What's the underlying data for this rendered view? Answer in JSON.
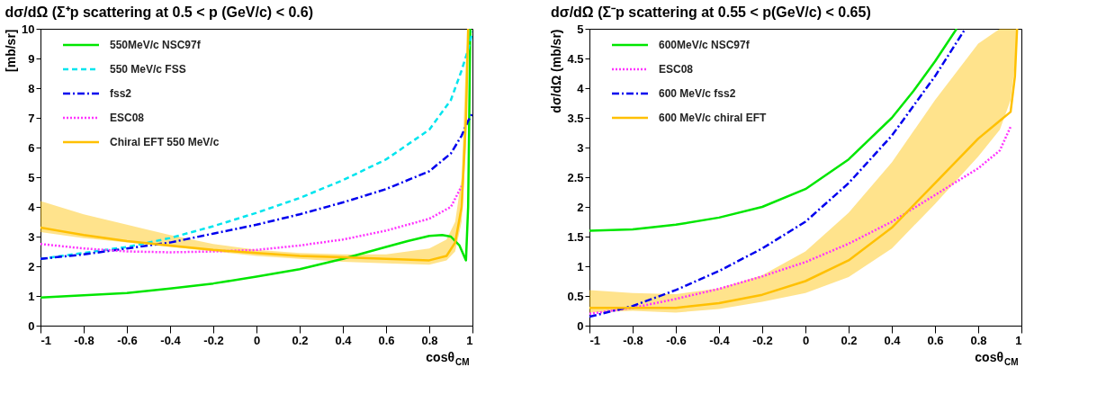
{
  "chart_data": [
    {
      "type": "line",
      "title": "dσ/dΩ (Σ⁺p scattering at 0.5 < p (GeV/c) < 0.6)",
      "xlabel": "cosθ$_{CM}$",
      "ylabel": "[mb/sr]",
      "xlim": [
        -1,
        1
      ],
      "ylim": [
        0,
        10
      ],
      "xticks": [
        -1,
        -0.8,
        -0.6,
        -0.4,
        -0.2,
        0,
        0.2,
        0.4,
        0.6,
        0.8,
        1
      ],
      "yticks": [
        0,
        1,
        2,
        3,
        4,
        5,
        6,
        7,
        8,
        9,
        10
      ],
      "legend": "top left",
      "grid": false,
      "series": [
        {
          "name": "550MeV/c NSC97f",
          "color": "#00e600",
          "line_style": "solid",
          "x": [
            -1,
            -0.8,
            -0.6,
            -0.4,
            -0.2,
            0,
            0.2,
            0.4,
            0.6,
            0.7,
            0.8,
            0.86,
            0.9,
            0.94,
            0.97,
            0.98,
            0.99
          ],
          "values": [
            0.95,
            1.02,
            1.1,
            1.25,
            1.42,
            1.65,
            1.9,
            2.25,
            2.65,
            2.85,
            3.02,
            3.05,
            3.0,
            2.7,
            2.2,
            4,
            10
          ]
        },
        {
          "name": "550 MeV/c FSS",
          "color": "#00e5ee",
          "line_style": "dashed",
          "x": [
            -1,
            -0.8,
            -0.6,
            -0.4,
            -0.2,
            0,
            0.2,
            0.4,
            0.6,
            0.8,
            0.9,
            0.95,
            0.98,
            1
          ],
          "values": [
            2.25,
            2.45,
            2.65,
            2.95,
            3.35,
            3.8,
            4.3,
            4.9,
            5.6,
            6.6,
            7.6,
            8.6,
            9.3,
            9.9
          ]
        },
        {
          "name": "fss2",
          "color": "#0000ee",
          "line_style": "dashdot",
          "x": [
            -1,
            -0.8,
            -0.6,
            -0.4,
            -0.2,
            0,
            0.2,
            0.4,
            0.6,
            0.8,
            0.9,
            0.95,
            0.98,
            1
          ],
          "values": [
            2.25,
            2.4,
            2.6,
            2.8,
            3.1,
            3.4,
            3.75,
            4.15,
            4.6,
            5.2,
            5.8,
            6.4,
            6.9,
            7.15
          ]
        },
        {
          "name": "ESC08",
          "color": "#ff33ff",
          "line_style": "dotted",
          "x": [
            -1,
            -0.8,
            -0.6,
            -0.4,
            -0.2,
            0,
            0.2,
            0.4,
            0.6,
            0.8,
            0.9,
            0.95
          ],
          "values": [
            2.75,
            2.6,
            2.5,
            2.47,
            2.5,
            2.55,
            2.7,
            2.9,
            3.2,
            3.6,
            4.0,
            4.7
          ]
        },
        {
          "name": "Chiral EFT 550 MeV/c",
          "color": "#ffc000",
          "line_style": "solid",
          "x": [
            -1,
            -0.8,
            -0.6,
            -0.4,
            -0.2,
            0,
            0.2,
            0.4,
            0.6,
            0.8,
            0.88,
            0.92,
            0.95,
            0.97,
            0.98
          ],
          "values": [
            3.3,
            3.05,
            2.85,
            2.7,
            2.55,
            2.45,
            2.35,
            2.3,
            2.25,
            2.2,
            2.35,
            2.8,
            4,
            7,
            10
          ],
          "lower": [
            3.15,
            2.95,
            2.8,
            2.65,
            2.5,
            2.35,
            2.25,
            2.15,
            2.1,
            2.05,
            2.2,
            2.5,
            3.5,
            6,
            9
          ],
          "upper": [
            4.2,
            3.75,
            3.4,
            3.05,
            2.75,
            2.55,
            2.45,
            2.4,
            2.4,
            2.6,
            2.9,
            3.5,
            5,
            9,
            10
          ]
        }
      ]
    },
    {
      "type": "line",
      "title": "dσ/dΩ (Σ⁻p scattering at 0.55 < p(GeV/c) < 0.65)",
      "xlabel": "cosθ$_{CM}$",
      "ylabel": "dσ/dΩ (mb/sr)",
      "xlim": [
        -1,
        1
      ],
      "ylim": [
        0,
        5
      ],
      "xticks": [
        -1,
        -0.8,
        -0.6,
        -0.4,
        -0.2,
        0,
        0.2,
        0.4,
        0.6,
        0.8,
        1
      ],
      "yticks": [
        0,
        0.5,
        1,
        1.5,
        2,
        2.5,
        3,
        3.5,
        4,
        4.5,
        5
      ],
      "legend": "top left",
      "grid": false,
      "series": [
        {
          "name": "600MeV/c NSC97f",
          "color": "#00e600",
          "line_style": "solid",
          "x": [
            -1,
            -0.8,
            -0.6,
            -0.4,
            -0.2,
            0,
            0.2,
            0.4,
            0.5,
            0.6,
            0.7
          ],
          "values": [
            1.6,
            1.62,
            1.7,
            1.82,
            2.0,
            2.3,
            2.8,
            3.5,
            3.95,
            4.45,
            5.0
          ]
        },
        {
          "name": "ESC08",
          "color": "#ff33ff",
          "line_style": "dotted",
          "x": [
            -1,
            -0.8,
            -0.6,
            -0.4,
            -0.2,
            0,
            0.2,
            0.4,
            0.6,
            0.8,
            0.9,
            0.95
          ],
          "values": [
            0.2,
            0.3,
            0.45,
            0.62,
            0.83,
            1.07,
            1.38,
            1.75,
            2.2,
            2.65,
            2.95,
            3.35
          ]
        },
        {
          "name": "600 MeV/c fss2",
          "color": "#0000ee",
          "line_style": "dashdot",
          "x": [
            -1,
            -0.8,
            -0.6,
            -0.4,
            -0.2,
            0,
            0.2,
            0.4,
            0.6,
            0.74
          ],
          "values": [
            0.15,
            0.33,
            0.6,
            0.92,
            1.3,
            1.75,
            2.4,
            3.2,
            4.2,
            5.0
          ]
        },
        {
          "name": "600 MeV/c chiral EFT",
          "color": "#ffc000",
          "line_style": "solid",
          "x": [
            -1,
            -0.8,
            -0.6,
            -0.4,
            -0.2,
            0,
            0.2,
            0.4,
            0.6,
            0.8,
            0.9,
            0.95,
            0.97,
            0.98
          ],
          "values": [
            0.3,
            0.3,
            0.3,
            0.38,
            0.52,
            0.75,
            1.1,
            1.65,
            2.4,
            3.15,
            3.45,
            3.6,
            4.2,
            5.0
          ],
          "lower": [
            0.22,
            0.25,
            0.22,
            0.28,
            0.4,
            0.55,
            0.82,
            1.3,
            2.05,
            2.85,
            3.3,
            3.8,
            4.4,
            5.0
          ],
          "upper": [
            0.6,
            0.55,
            0.53,
            0.63,
            0.85,
            1.25,
            1.9,
            2.75,
            3.8,
            4.75,
            5.0,
            5.0,
            5.0,
            5.0
          ]
        }
      ]
    }
  ]
}
